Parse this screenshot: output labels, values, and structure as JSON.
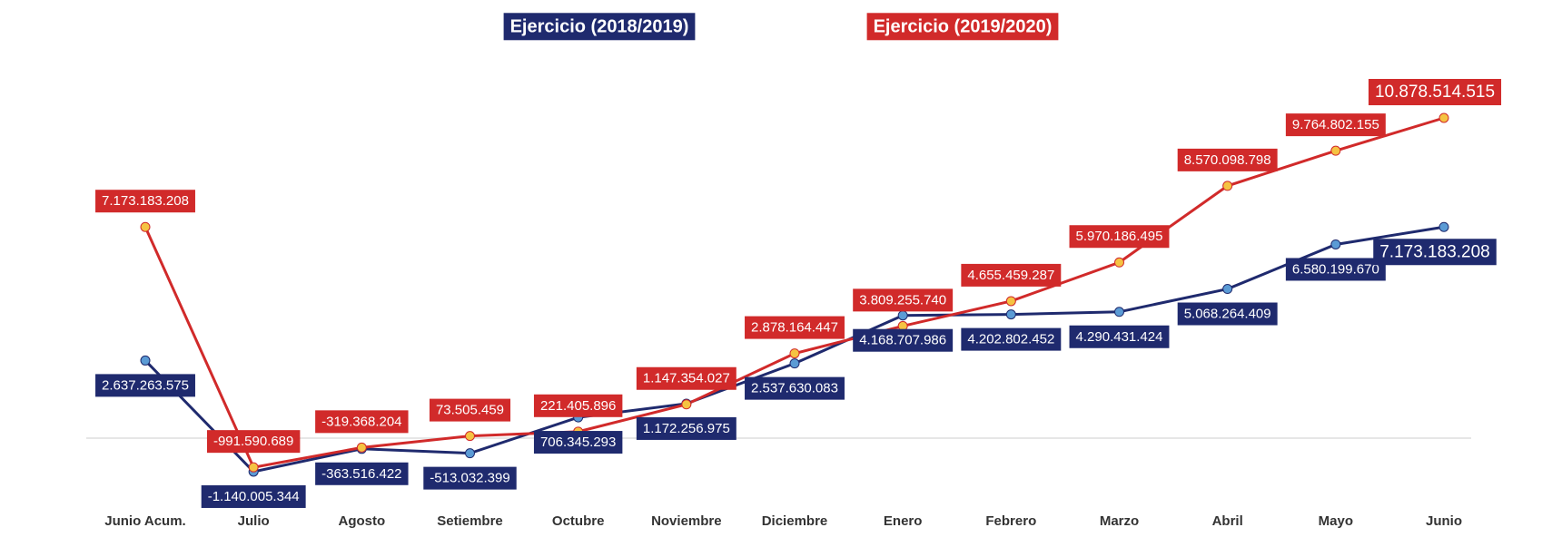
{
  "chart_data": {
    "type": "line",
    "categories": [
      "Junio Acum.",
      "Julio",
      "Agosto",
      "Setiembre",
      "Octubre",
      "Noviembre",
      "Diciembre",
      "Enero",
      "Febrero",
      "Marzo",
      "Abril",
      "Mayo",
      "Junio"
    ],
    "series": [
      {
        "name": "Ejercicio (2018/2019)",
        "color": "#1f2a6e",
        "marker_color": "#5b9bd5",
        "values": [
          2637263575,
          -1140005344,
          -363516422,
          -513032399,
          706345293,
          1172256975,
          2537630083,
          4168707986,
          4202802452,
          4290431424,
          5068264409,
          6580199670,
          7173183208
        ],
        "value_labels": [
          "2.637.263.575",
          "-1.140.005.344",
          "-363.516.422",
          "-513.032.399",
          "706.345.293",
          "1.172.256.975",
          "2.537.630.083",
          "4.168.707.986",
          "4.202.802.452",
          "4.290.431.424",
          "5.068.264.409",
          "6.580.199.670",
          "7.173.183.208"
        ]
      },
      {
        "name": "Ejercicio (2019/2020)",
        "color": "#d12a2a",
        "marker_color": "#f5c342",
        "values": [
          7173183208,
          -991590689,
          -319368204,
          73505459,
          221405896,
          1147354027,
          2878164447,
          3809255740,
          4655459287,
          5970186495,
          8570098798,
          9764802155,
          10878514515
        ],
        "value_labels": [
          "7.173.183.208",
          "-991.590.689",
          "-319.368.204",
          "73.505.459",
          "221.405.896",
          "1.147.354.027",
          "2.878.164.447",
          "3.809.255.740",
          "4.655.459.287",
          "5.970.186.495",
          "8.570.098.798",
          "9.764.802.155",
          "10.878.514.515"
        ]
      }
    ]
  }
}
